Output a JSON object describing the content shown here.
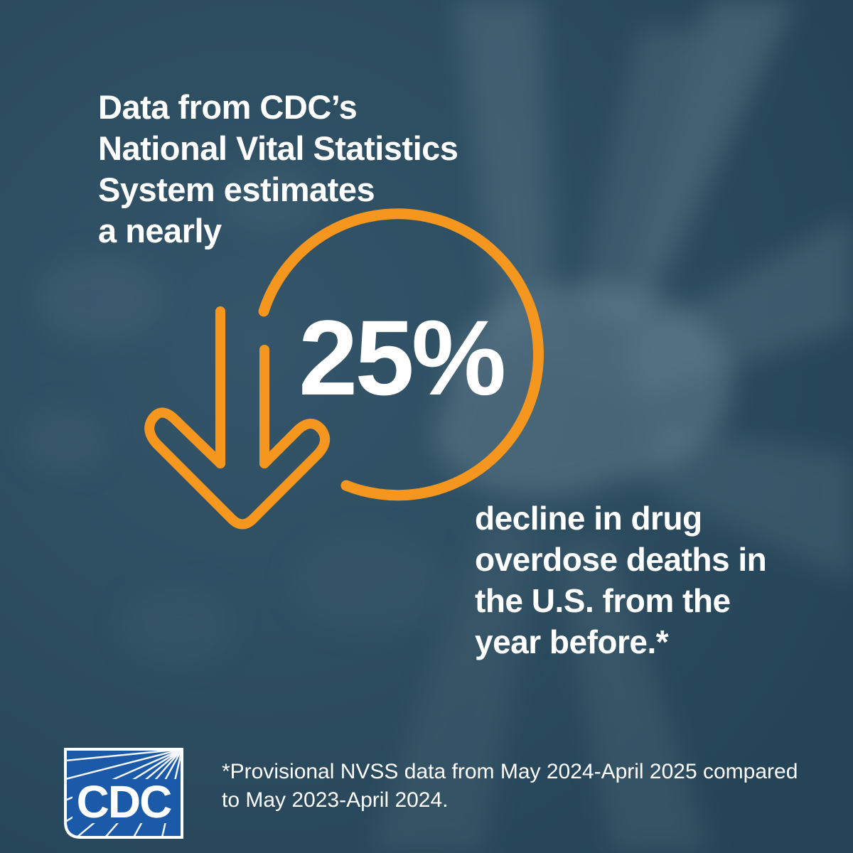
{
  "colors": {
    "background": "#2d4a5b",
    "accent_orange": "#f5961e",
    "text": "#ffffff",
    "logo_blue": "#1b5aa8"
  },
  "headline": {
    "lines": [
      "Data from CDC’s",
      "National Vital Statistics",
      "System estimates",
      "a nearly"
    ]
  },
  "stat": {
    "value": "25%",
    "icon": "down-arrow-icon"
  },
  "tail": {
    "lines": [
      "decline in drug",
      "overdose deaths in",
      "the U.S. from the",
      "year before.*"
    ]
  },
  "footnote": {
    "lines": [
      "*Provisional NVSS data from May 2024-April 2025 compared",
      "to May 2023-April 2024."
    ]
  },
  "logo": {
    "text": "CDC",
    "icon": "cdc-logo"
  }
}
